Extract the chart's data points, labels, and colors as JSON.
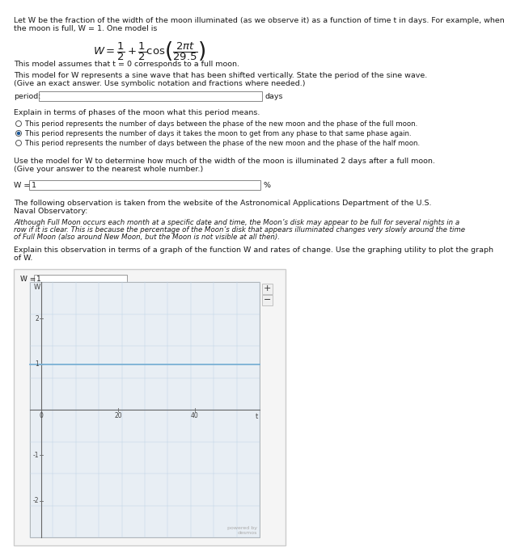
{
  "line1": "Let W be the fraction of the width of the moon illuminated (as we observe it) as a function of time t in days. For example, when",
  "line2": "the moon is full, W = 1. One model is",
  "model_note": "This model assumes that t = 0 corresponds to a full moon.",
  "question1a": "This model for W represents a sine wave that has been shifted vertically. State the period of the sine wave.",
  "question1b": "(Give an exact answer. Use symbolic notation and fractions where needed.)",
  "period_label": "period:",
  "days_label": "days",
  "explain_label": "Explain in terms of phases of the moon what this period means.",
  "radio1": "This period represents the number of days between the phase of the new moon and the phase of the full moon.",
  "radio2": "This period represents the number of days it takes the moon to get from any phase to that same phase again.",
  "radio3": "This period represents the number of days between the phase of the new moon and the phase of the half moon.",
  "question2a": "Use the model for W to determine how much of the width of the moon is illuminated 2 days after a full moon.",
  "question2b": "(Give your answer to the nearest whole number.)",
  "w_label": "W =",
  "percent_label": "%",
  "w_input_val": "1",
  "obs_line1": "The following observation is taken from the website of the Astronomical Applications Department of the U.S.",
  "obs_line2": "Naval Observatory:",
  "obs_body1": "Although Full Moon occurs each month at a specific date and time, the Moon’s disk may appear to be full for several nights in a",
  "obs_body2": "row if it is clear. This is because the percentage of the Moon’s disk that appears illuminated changes very slowly around the time",
  "obs_body3": "of Full Moon (also around New Moon, but the Moon is not visible at all then).",
  "exp2a": "Explain this observation in terms of a graph of the function W and rates of change. Use the graphing utility to plot the graph",
  "exp2b": "of W.",
  "graph_w_eq": "W = 1",
  "graph_input_val": "1",
  "graph_ylabel": "W",
  "graph_xlabel": "t",
  "hline_y_data": 1.0,
  "hline_color": "#7ab0d4",
  "x_data_min": -3,
  "x_data_max": 57,
  "y_data_min": -2.8,
  "y_data_max": 2.8,
  "bg_color": "#ffffff",
  "text_color": "#1a1a1a",
  "box_border": "#888888",
  "graph_bg": "#e8eef4",
  "grid_color": "#c0d4e4",
  "axis_color": "#666666",
  "tick_label_color": "#444444",
  "btn_bg": "#f0f0f0",
  "btn_border": "#bbbbbb",
  "panel_bg": "#f5f5f5",
  "panel_border": "#cccccc",
  "desmos_color": "#aaaaaa",
  "font_size_body": 6.8,
  "font_size_small": 6.2,
  "font_size_formula": 9.5,
  "font_size_graph": 5.5,
  "radio_selected": 1
}
